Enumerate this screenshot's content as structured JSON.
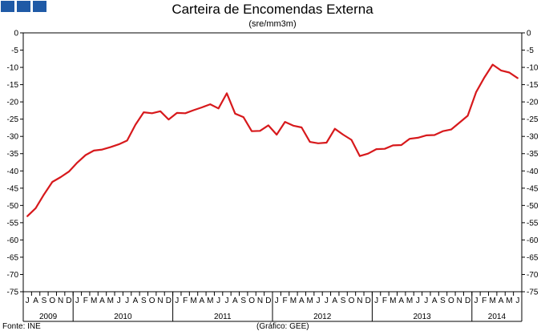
{
  "header": {
    "title": "Carteira de Encomendas Externa",
    "subtitle": "(sre/mm3m)"
  },
  "footer": {
    "source": "Fonte: INE",
    "credit": "(Gráfico: GEE)"
  },
  "colors": {
    "series": "#d7191c",
    "axis": "#000000",
    "logo": "#1f5aa6"
  },
  "chart_data": {
    "type": "line",
    "title": "Carteira de Encomendas Externa",
    "subtitle": "(sre/mm3m)",
    "ylim": [
      -75,
      0
    ],
    "yticks": [
      0,
      -5,
      -10,
      -15,
      -20,
      -25,
      -30,
      -35,
      -40,
      -45,
      -50,
      -55,
      -60,
      -65,
      -70,
      -75
    ],
    "grid": false,
    "legend": "none",
    "month_labels": [
      "J",
      "A",
      "S",
      "O",
      "N",
      "D",
      "J",
      "F",
      "M",
      "A",
      "M",
      "J",
      "J",
      "A",
      "S",
      "O",
      "N",
      "D",
      "J",
      "F",
      "M",
      "A",
      "M",
      "J",
      "J",
      "A",
      "S",
      "O",
      "N",
      "D",
      "J",
      "F",
      "M",
      "A",
      "M",
      "J",
      "J",
      "A",
      "S",
      "O",
      "N",
      "D",
      "J",
      "F",
      "M",
      "A",
      "M",
      "J",
      "J",
      "A",
      "S",
      "O",
      "N",
      "D",
      "J",
      "F",
      "M",
      "A",
      "M",
      "J"
    ],
    "years": [
      {
        "label": "2009",
        "start": 0,
        "count": 6
      },
      {
        "label": "2010",
        "start": 6,
        "count": 12
      },
      {
        "label": "2011",
        "start": 18,
        "count": 12
      },
      {
        "label": "2012",
        "start": 30,
        "count": 12
      },
      {
        "label": "2013",
        "start": 42,
        "count": 12
      },
      {
        "label": "2014",
        "start": 54,
        "count": 6
      }
    ],
    "series": [
      {
        "values": [
          -53.1,
          -50.8,
          -46.8,
          -43.2,
          -41.8,
          -40.2,
          -37.6,
          -35.4,
          -34.1,
          -33.8,
          -33.1,
          -32.3,
          -31.2,
          -26.6,
          -23.0,
          -23.3,
          -22.7,
          -25.1,
          -23.2,
          -23.3,
          -22.4,
          -21.6,
          -20.7,
          -21.9,
          -17.5,
          -23.4,
          -24.4,
          -28.5,
          -28.4,
          -26.8,
          -29.5,
          -25.8,
          -26.9,
          -27.4,
          -31.6,
          -32.0,
          -31.8,
          -27.8,
          -29.5,
          -31.0,
          -35.7,
          -35.0,
          -33.7,
          -33.6,
          -32.6,
          -32.5,
          -30.7,
          -30.4,
          -29.7,
          -29.6,
          -28.5,
          -28.0,
          -26.0,
          -24.0,
          -17.2,
          -12.9,
          -9.2,
          -10.9,
          -11.5,
          -13.1
        ]
      }
    ]
  }
}
